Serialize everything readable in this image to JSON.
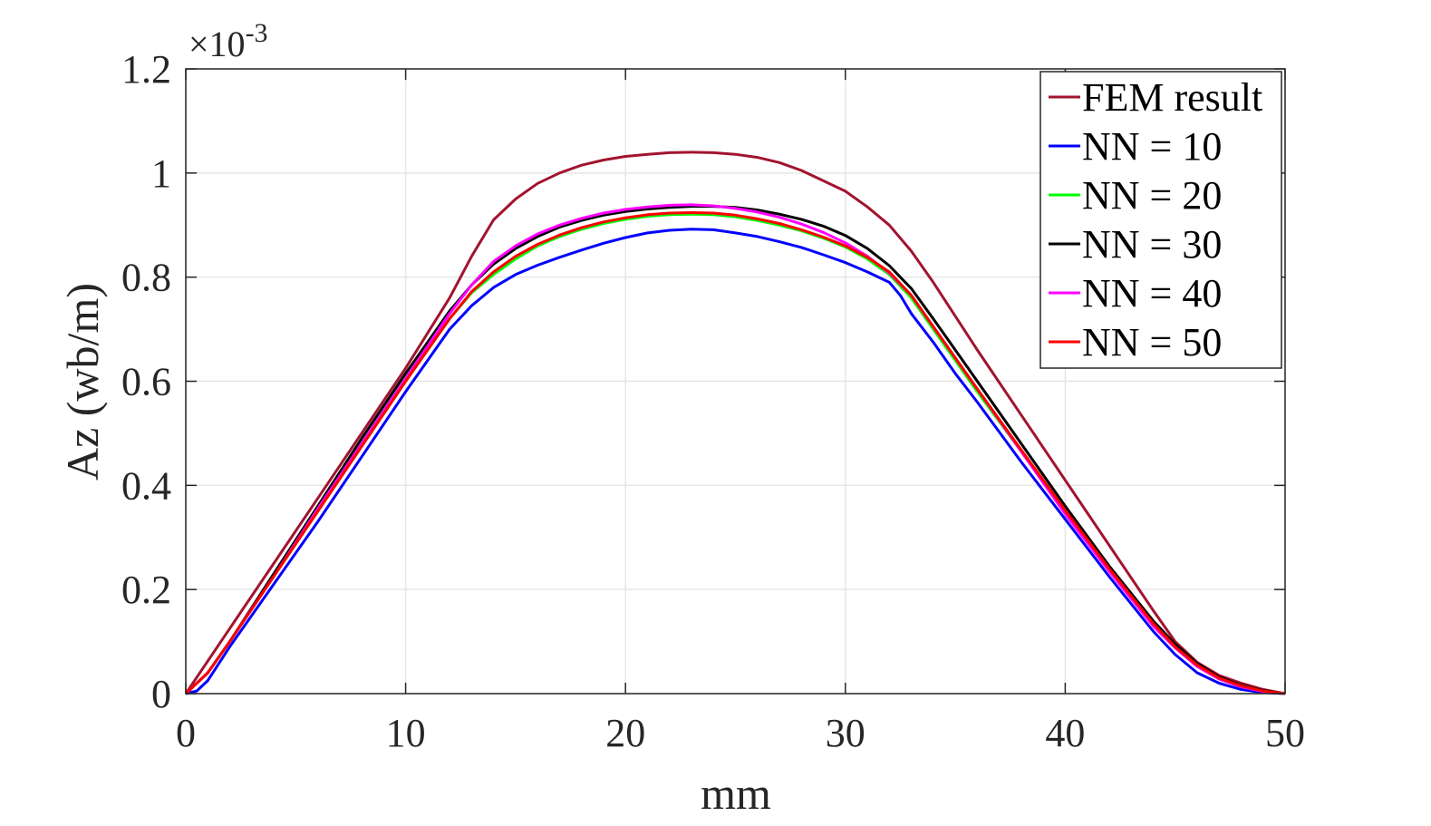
{
  "chart_data": {
    "type": "line",
    "xlabel": "mm",
    "ylabel": "Az (wb/m)",
    "y_multiplier": "×10",
    "y_exponent": "-3",
    "xlim": [
      0,
      50
    ],
    "ylim": [
      0,
      1.2
    ],
    "xticks": [
      0,
      10,
      20,
      30,
      40,
      50
    ],
    "xtick_labels": [
      "0",
      "10",
      "20",
      "30",
      "40",
      "50"
    ],
    "yticks": [
      0,
      0.2,
      0.4,
      0.6,
      0.8,
      1.0,
      1.2
    ],
    "ytick_labels": [
      "0",
      "0.2",
      "0.4",
      "0.6",
      "0.8",
      "1",
      "1.2"
    ],
    "grid": true,
    "legend_position": "top-right",
    "series": [
      {
        "name": "FEM result",
        "color": "#a2142f",
        "points": [
          [
            0,
            0
          ],
          [
            2,
            0.125
          ],
          [
            4,
            0.25
          ],
          [
            6,
            0.375
          ],
          [
            8,
            0.5
          ],
          [
            10,
            0.625
          ],
          [
            12,
            0.76
          ],
          [
            13,
            0.84
          ],
          [
            14,
            0.91
          ],
          [
            15,
            0.95
          ],
          [
            16,
            0.98
          ],
          [
            17,
            1.0
          ],
          [
            18,
            1.015
          ],
          [
            19,
            1.025
          ],
          [
            20,
            1.032
          ],
          [
            21,
            1.036
          ],
          [
            22,
            1.039
          ],
          [
            23,
            1.04
          ],
          [
            24,
            1.039
          ],
          [
            25,
            1.036
          ],
          [
            26,
            1.03
          ],
          [
            27,
            1.02
          ],
          [
            28,
            1.005
          ],
          [
            29,
            0.985
          ],
          [
            30,
            0.965
          ],
          [
            31,
            0.935
          ],
          [
            32,
            0.9
          ],
          [
            33,
            0.85
          ],
          [
            34,
            0.79
          ],
          [
            35,
            0.725
          ],
          [
            36,
            0.66
          ],
          [
            38,
            0.535
          ],
          [
            40,
            0.41
          ],
          [
            42,
            0.285
          ],
          [
            44,
            0.16
          ],
          [
            45,
            0.1
          ],
          [
            46,
            0.06
          ],
          [
            47,
            0.035
          ],
          [
            48,
            0.02
          ],
          [
            49,
            0.008
          ],
          [
            50,
            0
          ]
        ]
      },
      {
        "name": "NN = 10",
        "color": "#0000ff",
        "points": [
          [
            0,
            0
          ],
          [
            0.5,
            0.005
          ],
          [
            1,
            0.025
          ],
          [
            2,
            0.09
          ],
          [
            4,
            0.21
          ],
          [
            6,
            0.33
          ],
          [
            8,
            0.455
          ],
          [
            10,
            0.58
          ],
          [
            12,
            0.7
          ],
          [
            13,
            0.745
          ],
          [
            14,
            0.78
          ],
          [
            15,
            0.805
          ],
          [
            16,
            0.823
          ],
          [
            17,
            0.838
          ],
          [
            18,
            0.852
          ],
          [
            19,
            0.865
          ],
          [
            20,
            0.876
          ],
          [
            21,
            0.885
          ],
          [
            22,
            0.89
          ],
          [
            23,
            0.892
          ],
          [
            24,
            0.891
          ],
          [
            25,
            0.885
          ],
          [
            26,
            0.878
          ],
          [
            27,
            0.868
          ],
          [
            28,
            0.857
          ],
          [
            29,
            0.843
          ],
          [
            30,
            0.828
          ],
          [
            31,
            0.81
          ],
          [
            32,
            0.79
          ],
          [
            32.5,
            0.765
          ],
          [
            33,
            0.73
          ],
          [
            34,
            0.675
          ],
          [
            35,
            0.615
          ],
          [
            36,
            0.56
          ],
          [
            38,
            0.445
          ],
          [
            40,
            0.335
          ],
          [
            42,
            0.225
          ],
          [
            44,
            0.12
          ],
          [
            45,
            0.075
          ],
          [
            46,
            0.04
          ],
          [
            47,
            0.02
          ],
          [
            48,
            0.008
          ],
          [
            49,
            0.002
          ],
          [
            50,
            0
          ]
        ]
      },
      {
        "name": "NN = 20",
        "color": "#00ff00",
        "points": [
          [
            0,
            0
          ],
          [
            1,
            0.04
          ],
          [
            2,
            0.1
          ],
          [
            4,
            0.225
          ],
          [
            6,
            0.35
          ],
          [
            8,
            0.475
          ],
          [
            10,
            0.6
          ],
          [
            12,
            0.72
          ],
          [
            13,
            0.77
          ],
          [
            14,
            0.805
          ],
          [
            15,
            0.835
          ],
          [
            16,
            0.86
          ],
          [
            17,
            0.878
          ],
          [
            18,
            0.892
          ],
          [
            19,
            0.903
          ],
          [
            20,
            0.911
          ],
          [
            21,
            0.917
          ],
          [
            22,
            0.92
          ],
          [
            23,
            0.921
          ],
          [
            24,
            0.92
          ],
          [
            25,
            0.916
          ],
          [
            26,
            0.909
          ],
          [
            27,
            0.9
          ],
          [
            28,
            0.889
          ],
          [
            29,
            0.875
          ],
          [
            30,
            0.858
          ],
          [
            31,
            0.835
          ],
          [
            32,
            0.805
          ],
          [
            33,
            0.76
          ],
          [
            34,
            0.7
          ],
          [
            35,
            0.64
          ],
          [
            36,
            0.58
          ],
          [
            38,
            0.465
          ],
          [
            40,
            0.35
          ],
          [
            42,
            0.24
          ],
          [
            44,
            0.135
          ],
          [
            45,
            0.09
          ],
          [
            46,
            0.055
          ],
          [
            47,
            0.03
          ],
          [
            48,
            0.015
          ],
          [
            49,
            0.005
          ],
          [
            50,
            0
          ]
        ]
      },
      {
        "name": "NN = 30",
        "color": "#000000",
        "points": [
          [
            0,
            0
          ],
          [
            1,
            0.04
          ],
          [
            2,
            0.1
          ],
          [
            4,
            0.23
          ],
          [
            6,
            0.36
          ],
          [
            8,
            0.49
          ],
          [
            10,
            0.615
          ],
          [
            12,
            0.735
          ],
          [
            13,
            0.785
          ],
          [
            14,
            0.825
          ],
          [
            15,
            0.855
          ],
          [
            16,
            0.878
          ],
          [
            17,
            0.896
          ],
          [
            18,
            0.909
          ],
          [
            19,
            0.919
          ],
          [
            20,
            0.926
          ],
          [
            21,
            0.931
          ],
          [
            22,
            0.934
          ],
          [
            23,
            0.936
          ],
          [
            24,
            0.936
          ],
          [
            25,
            0.934
          ],
          [
            26,
            0.929
          ],
          [
            27,
            0.921
          ],
          [
            28,
            0.911
          ],
          [
            29,
            0.898
          ],
          [
            30,
            0.88
          ],
          [
            31,
            0.855
          ],
          [
            32,
            0.822
          ],
          [
            33,
            0.778
          ],
          [
            34,
            0.72
          ],
          [
            35,
            0.66
          ],
          [
            36,
            0.6
          ],
          [
            38,
            0.48
          ],
          [
            40,
            0.36
          ],
          [
            42,
            0.245
          ],
          [
            44,
            0.14
          ],
          [
            45,
            0.095
          ],
          [
            46,
            0.058
          ],
          [
            47,
            0.032
          ],
          [
            48,
            0.016
          ],
          [
            49,
            0.006
          ],
          [
            50,
            0
          ]
        ]
      },
      {
        "name": "NN = 40",
        "color": "#ff00ff",
        "points": [
          [
            0,
            0
          ],
          [
            1,
            0.04
          ],
          [
            2,
            0.1
          ],
          [
            4,
            0.225
          ],
          [
            6,
            0.355
          ],
          [
            8,
            0.48
          ],
          [
            10,
            0.605
          ],
          [
            12,
            0.73
          ],
          [
            13,
            0.785
          ],
          [
            14,
            0.83
          ],
          [
            15,
            0.86
          ],
          [
            16,
            0.883
          ],
          [
            17,
            0.9
          ],
          [
            18,
            0.913
          ],
          [
            19,
            0.923
          ],
          [
            20,
            0.93
          ],
          [
            21,
            0.935
          ],
          [
            22,
            0.938
          ],
          [
            23,
            0.939
          ],
          [
            24,
            0.937
          ],
          [
            25,
            0.932
          ],
          [
            26,
            0.925
          ],
          [
            27,
            0.915
          ],
          [
            28,
            0.902
          ],
          [
            29,
            0.886
          ],
          [
            30,
            0.866
          ],
          [
            31,
            0.84
          ],
          [
            32,
            0.808
          ],
          [
            33,
            0.765
          ],
          [
            34,
            0.705
          ],
          [
            35,
            0.645
          ],
          [
            36,
            0.585
          ],
          [
            38,
            0.465
          ],
          [
            40,
            0.345
          ],
          [
            42,
            0.235
          ],
          [
            44,
            0.13
          ],
          [
            45,
            0.088
          ],
          [
            46,
            0.052
          ],
          [
            47,
            0.028
          ],
          [
            48,
            0.013
          ],
          [
            49,
            0.004
          ],
          [
            50,
            0
          ]
        ]
      },
      {
        "name": "NN = 50",
        "color": "#ff0000",
        "points": [
          [
            0,
            0
          ],
          [
            1,
            0.04
          ],
          [
            2,
            0.1
          ],
          [
            4,
            0.225
          ],
          [
            6,
            0.35
          ],
          [
            8,
            0.475
          ],
          [
            10,
            0.6
          ],
          [
            12,
            0.72
          ],
          [
            13,
            0.772
          ],
          [
            14,
            0.81
          ],
          [
            15,
            0.84
          ],
          [
            16,
            0.863
          ],
          [
            17,
            0.881
          ],
          [
            18,
            0.895
          ],
          [
            19,
            0.906
          ],
          [
            20,
            0.914
          ],
          [
            21,
            0.92
          ],
          [
            22,
            0.923
          ],
          [
            23,
            0.924
          ],
          [
            24,
            0.923
          ],
          [
            25,
            0.919
          ],
          [
            26,
            0.912
          ],
          [
            27,
            0.903
          ],
          [
            28,
            0.891
          ],
          [
            29,
            0.877
          ],
          [
            30,
            0.86
          ],
          [
            31,
            0.838
          ],
          [
            32,
            0.81
          ],
          [
            33,
            0.765
          ],
          [
            34,
            0.705
          ],
          [
            35,
            0.645
          ],
          [
            36,
            0.585
          ],
          [
            38,
            0.468
          ],
          [
            40,
            0.352
          ],
          [
            42,
            0.24
          ],
          [
            44,
            0.135
          ],
          [
            45,
            0.09
          ],
          [
            46,
            0.055
          ],
          [
            47,
            0.03
          ],
          [
            48,
            0.015
          ],
          [
            49,
            0.005
          ],
          [
            50,
            0
          ]
        ]
      }
    ]
  }
}
